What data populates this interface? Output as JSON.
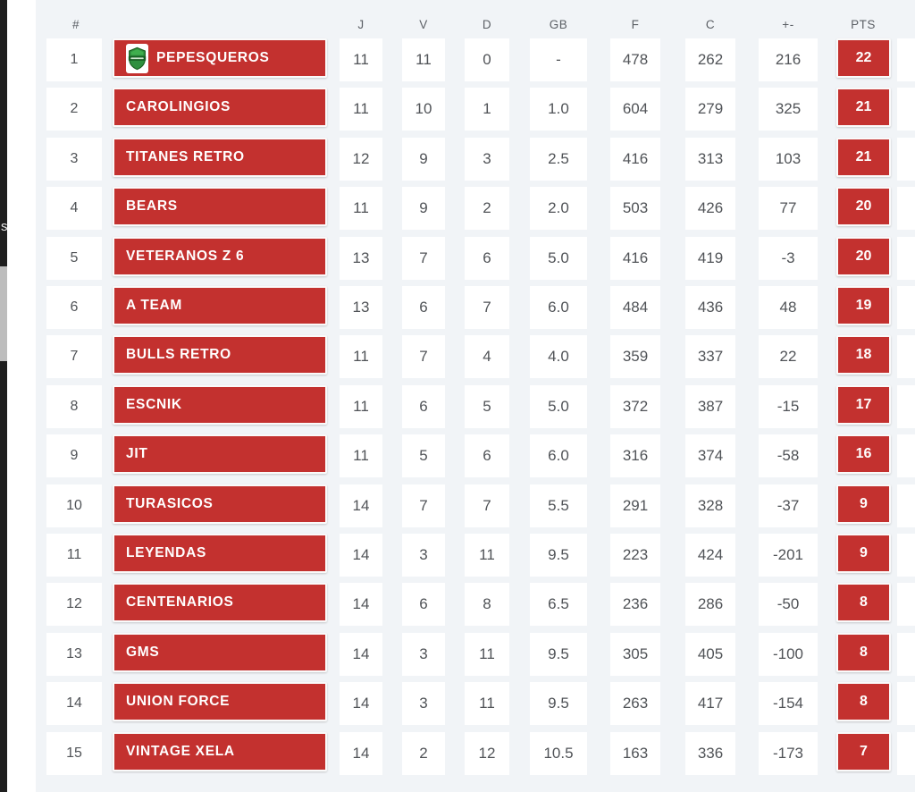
{
  "table": {
    "columns": [
      {
        "key": "pos",
        "label": "#"
      },
      {
        "key": "j",
        "label": "J"
      },
      {
        "key": "v",
        "label": "V"
      },
      {
        "key": "d",
        "label": "D"
      },
      {
        "key": "gb",
        "label": "GB"
      },
      {
        "key": "f",
        "label": "F"
      },
      {
        "key": "c",
        "label": "C"
      },
      {
        "key": "pm",
        "label": "+-"
      },
      {
        "key": "pts",
        "label": "PTS"
      }
    ],
    "rows": [
      {
        "pos": "1",
        "team": "PEPESQUEROS",
        "has_logo": true,
        "j": "11",
        "v": "11",
        "d": "0",
        "gb": "-",
        "f": "478",
        "c": "262",
        "pm": "216",
        "pts": "22"
      },
      {
        "pos": "2",
        "team": "CAROLINGIOS",
        "has_logo": false,
        "j": "11",
        "v": "10",
        "d": "1",
        "gb": "1.0",
        "f": "604",
        "c": "279",
        "pm": "325",
        "pts": "21"
      },
      {
        "pos": "3",
        "team": "TITANES RETRO",
        "has_logo": false,
        "j": "12",
        "v": "9",
        "d": "3",
        "gb": "2.5",
        "f": "416",
        "c": "313",
        "pm": "103",
        "pts": "21"
      },
      {
        "pos": "4",
        "team": "BEARS",
        "has_logo": false,
        "j": "11",
        "v": "9",
        "d": "2",
        "gb": "2.0",
        "f": "503",
        "c": "426",
        "pm": "77",
        "pts": "20"
      },
      {
        "pos": "5",
        "team": "VETERANOS Z 6",
        "has_logo": false,
        "j": "13",
        "v": "7",
        "d": "6",
        "gb": "5.0",
        "f": "416",
        "c": "419",
        "pm": "-3",
        "pts": "20"
      },
      {
        "pos": "6",
        "team": "A TEAM",
        "has_logo": false,
        "j": "13",
        "v": "6",
        "d": "7",
        "gb": "6.0",
        "f": "484",
        "c": "436",
        "pm": "48",
        "pts": "19"
      },
      {
        "pos": "7",
        "team": "BULLS RETRO",
        "has_logo": false,
        "j": "11",
        "v": "7",
        "d": "4",
        "gb": "4.0",
        "f": "359",
        "c": "337",
        "pm": "22",
        "pts": "18"
      },
      {
        "pos": "8",
        "team": "ESCNIK",
        "has_logo": false,
        "j": "11",
        "v": "6",
        "d": "5",
        "gb": "5.0",
        "f": "372",
        "c": "387",
        "pm": "-15",
        "pts": "17"
      },
      {
        "pos": "9",
        "team": "JIT",
        "has_logo": false,
        "j": "11",
        "v": "5",
        "d": "6",
        "gb": "6.0",
        "f": "316",
        "c": "374",
        "pm": "-58",
        "pts": "16"
      },
      {
        "pos": "10",
        "team": "TURASICOS",
        "has_logo": false,
        "j": "14",
        "v": "7",
        "d": "7",
        "gb": "5.5",
        "f": "291",
        "c": "328",
        "pm": "-37",
        "pts": "9"
      },
      {
        "pos": "11",
        "team": "LEYENDAS",
        "has_logo": false,
        "j": "14",
        "v": "3",
        "d": "11",
        "gb": "9.5",
        "f": "223",
        "c": "424",
        "pm": "-201",
        "pts": "9"
      },
      {
        "pos": "12",
        "team": "CENTENARIOS",
        "has_logo": false,
        "j": "14",
        "v": "6",
        "d": "8",
        "gb": "6.5",
        "f": "236",
        "c": "286",
        "pm": "-50",
        "pts": "8"
      },
      {
        "pos": "13",
        "team": "GMS",
        "has_logo": false,
        "j": "14",
        "v": "3",
        "d": "11",
        "gb": "9.5",
        "f": "305",
        "c": "405",
        "pm": "-100",
        "pts": "8"
      },
      {
        "pos": "14",
        "team": "UNION FORCE",
        "has_logo": false,
        "j": "14",
        "v": "3",
        "d": "11",
        "gb": "9.5",
        "f": "263",
        "c": "417",
        "pm": "-154",
        "pts": "8"
      },
      {
        "pos": "15",
        "team": "VINTAGE XELA",
        "has_logo": false,
        "j": "14",
        "v": "2",
        "d": "12",
        "gb": "10.5",
        "f": "163",
        "c": "336",
        "pm": "-173",
        "pts": "7"
      }
    ]
  },
  "left_edge": {
    "partial_text": "s"
  },
  "colors": {
    "badge_red": "#c3312f",
    "panel_bg": "#f1f4f7",
    "cell_bg": "#ffffff",
    "cell_text": "#505357",
    "header_text": "#5c6066",
    "strip_black": "#1f1f1f",
    "scroll_thumb_gray": "#bdbdbd",
    "logo_green": "#2f8f3e",
    "logo_dark_green": "#175e23"
  }
}
